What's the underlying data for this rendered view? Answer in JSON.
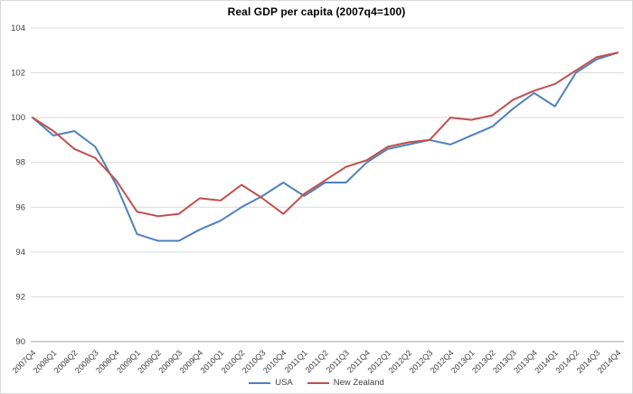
{
  "window": {
    "background": "#ffffff",
    "border_color": "#d9d9d9"
  },
  "colors": {
    "gridline": "#d9d9d9",
    "axis_line": "#a6a6a6",
    "tick_label": "#404040",
    "title": "#000000",
    "usa_line": "#4f81bd",
    "nz_line": "#c0504d"
  },
  "chart_data": {
    "type": "line",
    "title": "Real GDP per capita (2007q4=100)",
    "xlabel": "",
    "ylabel": "",
    "ylim": [
      90,
      104
    ],
    "ytick_step": 2,
    "grid": "horizontal",
    "legend_position": "bottom",
    "categories": [
      "2007Q4",
      "2008Q1",
      "2008Q2",
      "2008Q3",
      "2008Q4",
      "2009Q1",
      "2009Q2",
      "2009Q3",
      "2009Q4",
      "2010Q1",
      "2010Q2",
      "2010Q3",
      "2010Q4",
      "2011Q1",
      "2011Q2",
      "2011Q3",
      "2011Q4",
      "2012Q1",
      "2012Q2",
      "2012Q3",
      "2012Q4",
      "2013Q1",
      "2013Q2",
      "2013Q3",
      "2013Q4",
      "2014Q1",
      "2014Q2",
      "2014Q3",
      "2014Q4"
    ],
    "series": [
      {
        "name": "USA",
        "color": "#4f81bd",
        "values": [
          100,
          99.2,
          99.4,
          98.7,
          97.0,
          94.8,
          94.5,
          94.5,
          95.0,
          95.4,
          96.0,
          96.5,
          97.1,
          96.5,
          97.1,
          97.1,
          98.0,
          98.6,
          98.8,
          99.0,
          98.8,
          99.2,
          99.6,
          100.4,
          101.1,
          100.5,
          102.0,
          102.6,
          102.9
        ]
      },
      {
        "name": "New Zealand",
        "color": "#c0504d",
        "values": [
          100,
          99.4,
          98.6,
          98.2,
          97.2,
          95.8,
          95.6,
          95.7,
          96.4,
          96.3,
          97.0,
          96.4,
          95.7,
          96.6,
          97.2,
          97.8,
          98.1,
          98.7,
          98.9,
          99.0,
          100.0,
          99.9,
          100.1,
          100.8,
          101.2,
          101.5,
          102.1,
          102.7,
          102.9
        ]
      }
    ]
  }
}
